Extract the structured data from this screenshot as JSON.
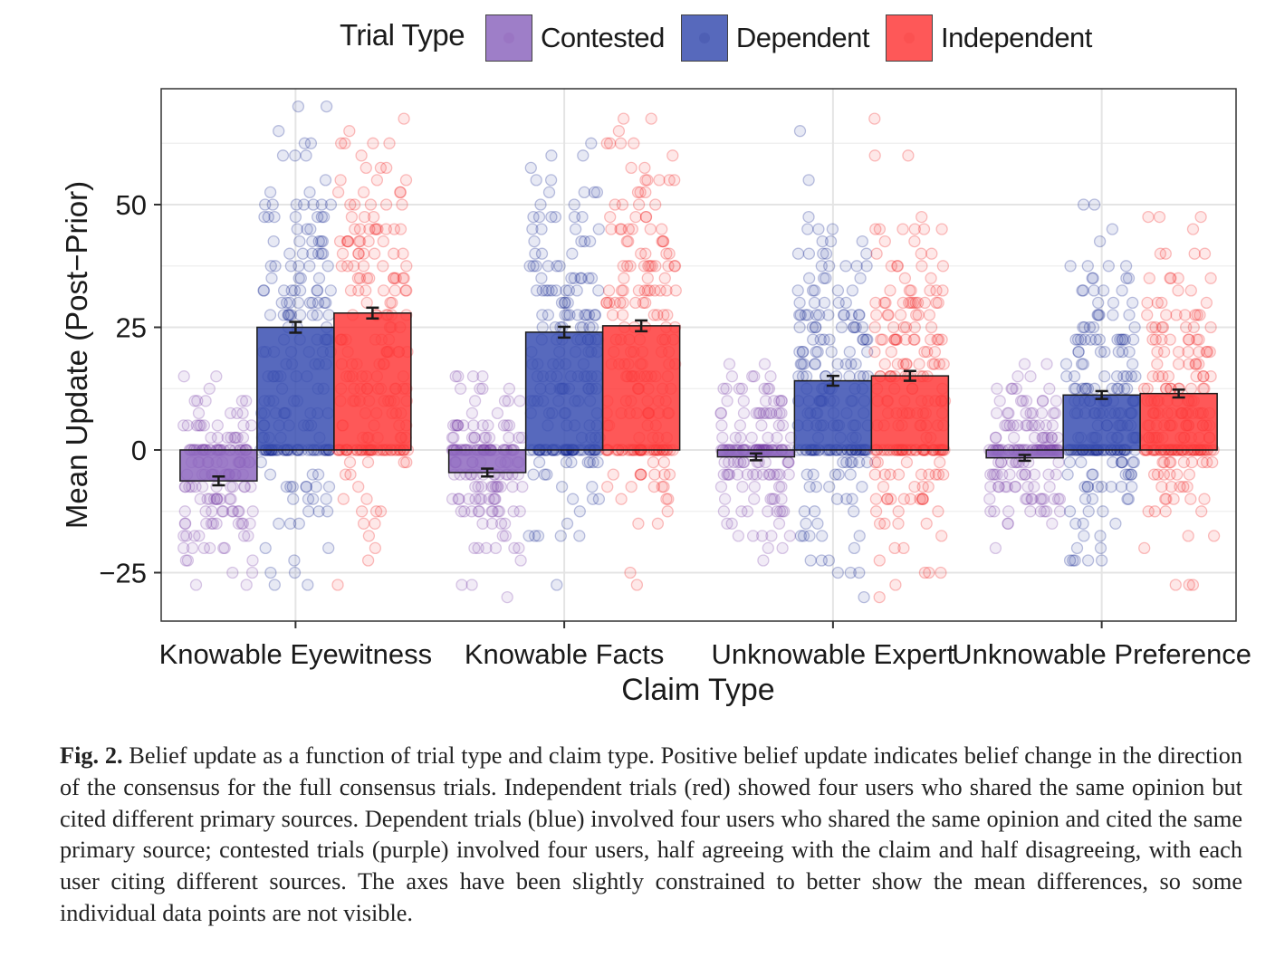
{
  "legend": {
    "title": "Trial Type",
    "items": [
      {
        "label": "Contested",
        "color": "#8e68bf"
      },
      {
        "label": "Dependent",
        "color": "#3a4fb1"
      },
      {
        "label": "Independent",
        "color": "#fe3b3b"
      }
    ]
  },
  "caption": {
    "label": "Fig. 2.",
    "text": "Belief update as a function of trial type and claim type. Positive belief update indicates belief change in the direction of the consensus for the full consensus trials. Independent trials (red) showed four users who shared the same opinion but cited different primary sources. Dependent trials (blue) involved four users who shared the same opinion and cited the same primary source; contested trials (purple) involved four users, half agreeing with the claim and half disagreeing, with each user citing different sources. The axes have been slightly constrained to better show the mean differences, so some individual data points are not visible."
  },
  "chart_data": {
    "type": "bar",
    "xlabel": "Claim Type",
    "ylabel": "Mean Update (Post−Prior)",
    "ylim": [
      -35,
      74
    ],
    "yticks": [
      {
        "value": -25,
        "label": "−25"
      },
      {
        "value": 0,
        "label": "0"
      },
      {
        "value": 25,
        "label": "25"
      },
      {
        "value": 50,
        "label": "50"
      }
    ],
    "categories": [
      "Knowable Eyewitness",
      "Knowable Facts",
      "Unknowable Expert",
      "Unknowable Preference"
    ],
    "grid": true,
    "legend_position": "top",
    "series": [
      {
        "name": "Contested",
        "color": "#8e68bf",
        "point_color": "#7a3fa8",
        "values": [
          -6.3,
          -4.6,
          -1.4,
          -1.6
        ],
        "error": [
          0.9,
          0.8,
          0.7,
          0.6
        ]
      },
      {
        "name": "Dependent",
        "color": "#3a4fb1",
        "point_color": "#13258f",
        "values": [
          25.0,
          24.0,
          14.1,
          11.2
        ],
        "error": [
          1.1,
          1.1,
          1.0,
          0.8
        ]
      },
      {
        "name": "Independent",
        "color": "#fe3b3b",
        "point_color": "#f21b1b",
        "values": [
          27.9,
          25.3,
          15.1,
          11.5
        ],
        "error": [
          1.1,
          1.1,
          1.0,
          0.8
        ]
      }
    ],
    "individual_points": "jittered individual participant belief updates overlaid on each bar"
  }
}
